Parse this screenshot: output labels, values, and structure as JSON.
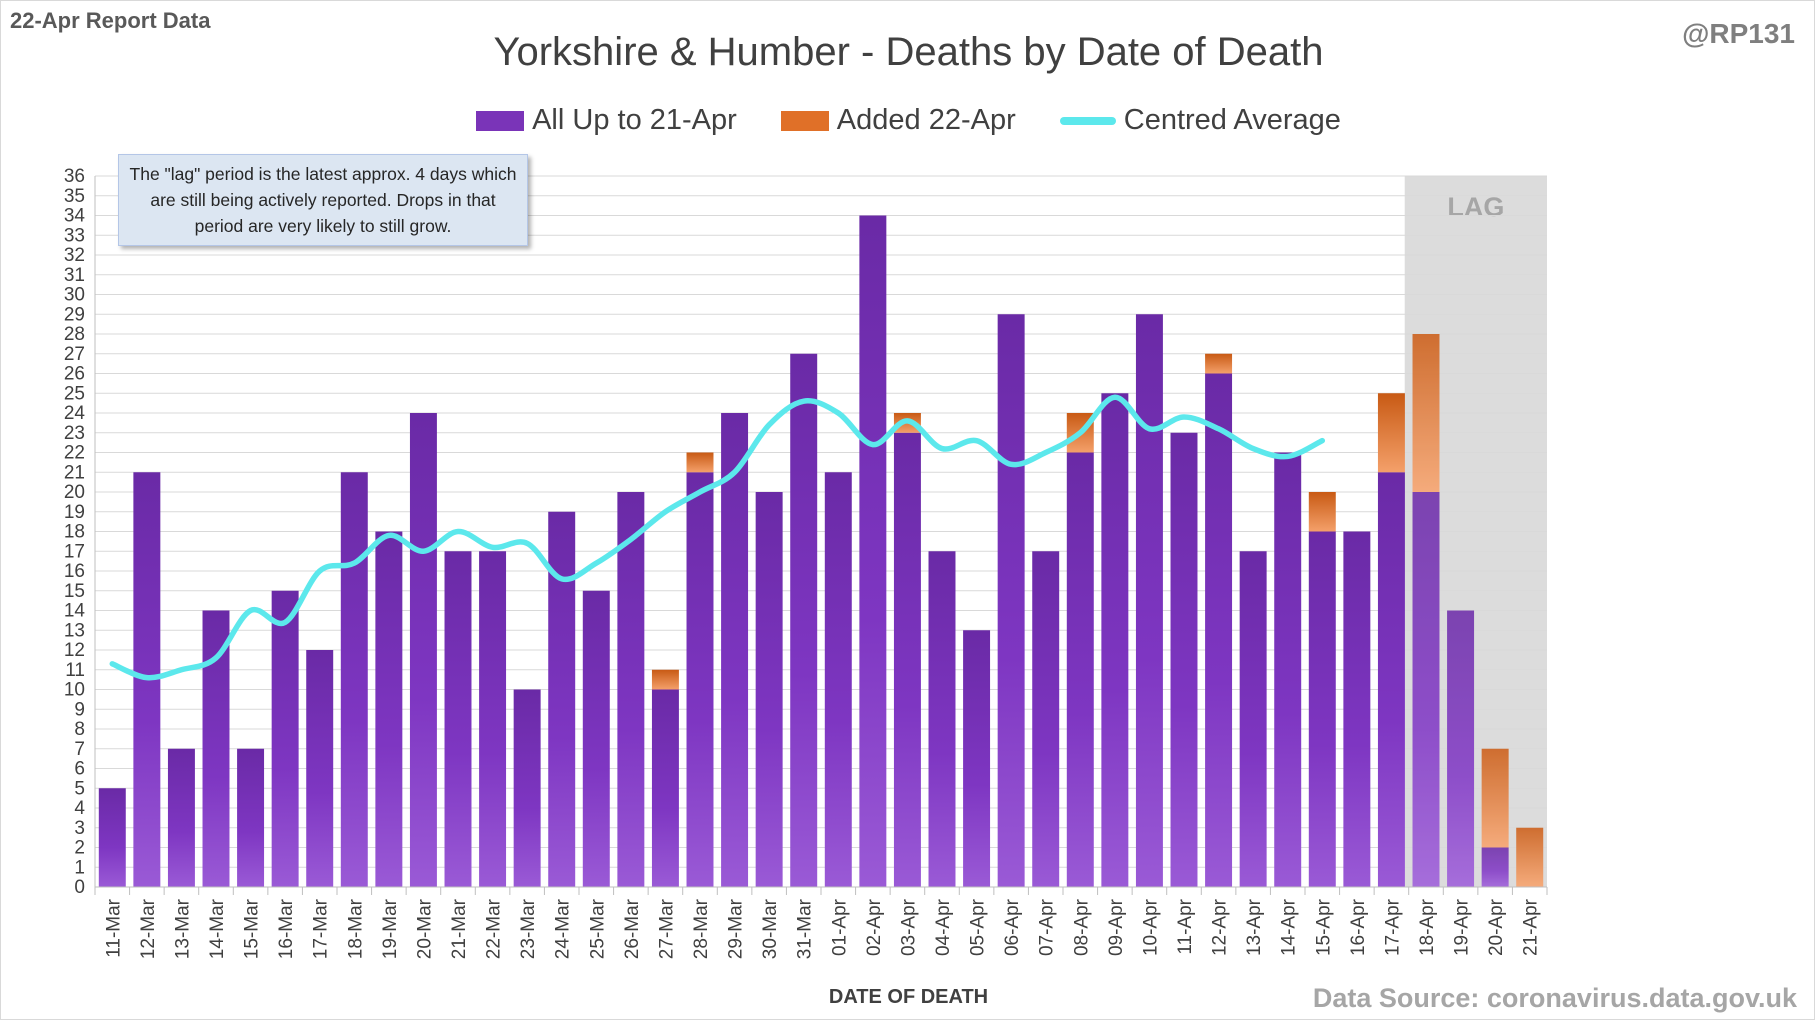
{
  "report_tag": "22-Apr Report Data",
  "handle": "@RP131",
  "source": "Data Source: coronavirus.data.gov.uk",
  "note": "The \"lag\" period is the latest approx. 4 days which are still being actively reported.  Drops in that period are very likely to still grow.",
  "lag_label": "LAG",
  "colors": {
    "base_bar": "#7a34b8",
    "added_bar": "#e07028",
    "average_line": "#5ce8ec",
    "lag_shade": "#d0d0d0"
  },
  "chart_data": {
    "type": "bar",
    "stacked": true,
    "title": "Yorkshire & Humber - Deaths by Date of Death",
    "xlabel": "DATE OF DEATH",
    "ylabel": "",
    "ylim": [
      0,
      36
    ],
    "ytick_step": 1,
    "grid": true,
    "legend_position": "top",
    "categories": [
      "11-Mar",
      "12-Mar",
      "13-Mar",
      "14-Mar",
      "15-Mar",
      "16-Mar",
      "17-Mar",
      "18-Mar",
      "19-Mar",
      "20-Mar",
      "21-Mar",
      "22-Mar",
      "23-Mar",
      "24-Mar",
      "25-Mar",
      "26-Mar",
      "27-Mar",
      "28-Mar",
      "29-Mar",
      "30-Mar",
      "31-Mar",
      "01-Apr",
      "02-Apr",
      "03-Apr",
      "04-Apr",
      "05-Apr",
      "06-Apr",
      "07-Apr",
      "08-Apr",
      "09-Apr",
      "10-Apr",
      "11-Apr",
      "12-Apr",
      "13-Apr",
      "14-Apr",
      "15-Apr",
      "16-Apr",
      "17-Apr",
      "18-Apr",
      "19-Apr",
      "20-Apr",
      "21-Apr"
    ],
    "series": [
      {
        "name": "All Up to 21-Apr",
        "kind": "bar",
        "values": [
          5,
          21,
          7,
          14,
          7,
          15,
          12,
          21,
          18,
          24,
          17,
          17,
          10,
          19,
          15,
          20,
          10,
          21,
          24,
          20,
          27,
          21,
          34,
          23,
          17,
          13,
          29,
          17,
          22,
          25,
          29,
          23,
          26,
          17,
          22,
          18,
          18,
          21,
          20,
          14,
          2,
          0
        ]
      },
      {
        "name": "Added 22-Apr",
        "kind": "bar",
        "values": [
          0,
          0,
          0,
          0,
          0,
          0,
          0,
          0,
          0,
          0,
          0,
          0,
          0,
          0,
          0,
          0,
          1,
          1,
          0,
          0,
          0,
          0,
          0,
          1,
          0,
          0,
          0,
          0,
          2,
          0,
          0,
          0,
          1,
          0,
          0,
          2,
          0,
          4,
          8,
          0,
          5,
          3
        ]
      },
      {
        "name": "Centred Average",
        "kind": "line",
        "values": [
          11.3,
          10.6,
          11.0,
          11.6,
          14.0,
          13.4,
          16.0,
          16.4,
          17.8,
          17.0,
          18.0,
          17.2,
          17.4,
          15.6,
          16.4,
          17.6,
          19.0,
          20.0,
          21.0,
          23.4,
          24.6,
          24.0,
          22.4,
          23.6,
          22.2,
          22.6,
          21.4,
          22.0,
          23.0,
          24.8,
          23.2,
          23.8,
          23.2,
          22.2,
          21.8,
          22.6,
          null,
          null,
          null,
          null,
          null,
          null
        ]
      }
    ],
    "lag_period": [
      "18-Apr",
      "21-Apr"
    ]
  }
}
